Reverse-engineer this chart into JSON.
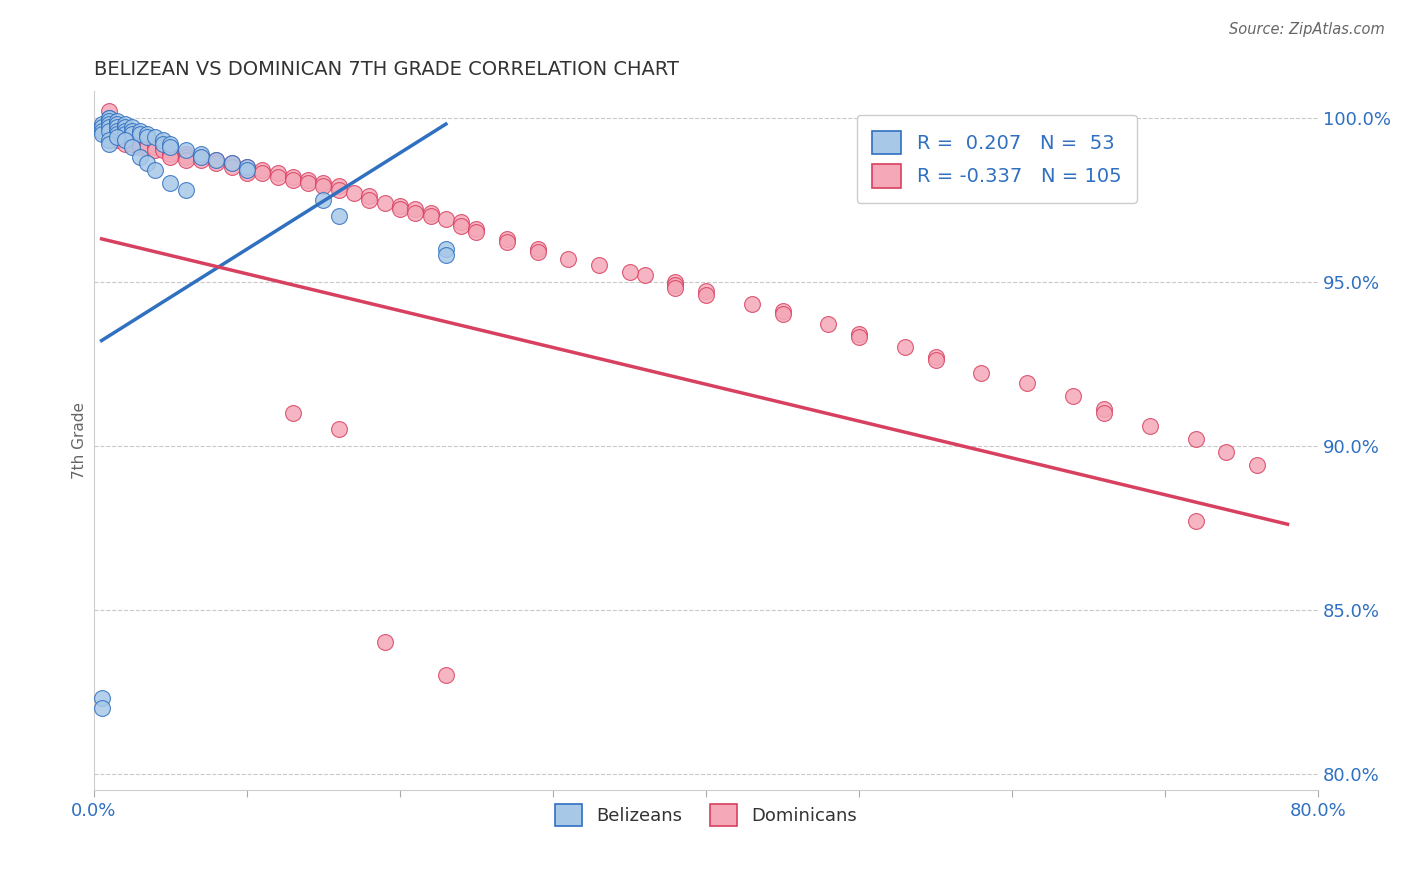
{
  "title": "BELIZEAN VS DOMINICAN 7TH GRADE CORRELATION CHART",
  "source": "Source: ZipAtlas.com",
  "ylabel": "7th Grade",
  "xlim": [
    0.0,
    0.8
  ],
  "ylim": [
    0.795,
    1.008
  ],
  "yticks": [
    0.8,
    0.85,
    0.9,
    0.95,
    1.0
  ],
  "ytick_labels": [
    "80.0%",
    "85.0%",
    "90.0%",
    "95.0%",
    "100.0%"
  ],
  "xticks": [
    0.0,
    0.1,
    0.2,
    0.3,
    0.4,
    0.5,
    0.6,
    0.7,
    0.8
  ],
  "xtick_labels": [
    "0.0%",
    "",
    "",
    "",
    "",
    "",
    "",
    "",
    "80.0%"
  ],
  "blue_R": 0.207,
  "blue_N": 53,
  "pink_R": -0.337,
  "pink_N": 105,
  "blue_color": "#a8c8e8",
  "pink_color": "#f4a8b8",
  "blue_line_color": "#3070c0",
  "pink_line_color": "#d84060",
  "blue_line_x0": 0.005,
  "blue_line_x1": 0.23,
  "blue_line_y0": 0.932,
  "blue_line_y1": 0.998,
  "pink_line_x0": 0.005,
  "pink_line_x1": 0.78,
  "pink_line_y0": 0.963,
  "pink_line_y1": 0.876,
  "blue_x": [
    0.005,
    0.005,
    0.005,
    0.005,
    0.01,
    0.01,
    0.01,
    0.01,
    0.01,
    0.01,
    0.015,
    0.015,
    0.015,
    0.015,
    0.015,
    0.02,
    0.02,
    0.02,
    0.02,
    0.025,
    0.025,
    0.025,
    0.03,
    0.03,
    0.035,
    0.035,
    0.04,
    0.045,
    0.045,
    0.05,
    0.05,
    0.06,
    0.07,
    0.07,
    0.08,
    0.09,
    0.1,
    0.1,
    0.15,
    0.16,
    0.23,
    0.23,
    0.01,
    0.01,
    0.015,
    0.02,
    0.025,
    0.03,
    0.035,
    0.04,
    0.05,
    0.06,
    0.005,
    0.005
  ],
  "blue_y": [
    0.998,
    0.997,
    0.996,
    0.995,
    1.0,
    1.0,
    0.999,
    0.998,
    0.997,
    0.996,
    0.999,
    0.998,
    0.997,
    0.996,
    0.995,
    0.998,
    0.997,
    0.996,
    0.995,
    0.997,
    0.996,
    0.995,
    0.996,
    0.995,
    0.995,
    0.994,
    0.994,
    0.993,
    0.992,
    0.992,
    0.991,
    0.99,
    0.989,
    0.988,
    0.987,
    0.986,
    0.985,
    0.984,
    0.975,
    0.97,
    0.96,
    0.958,
    0.993,
    0.992,
    0.994,
    0.993,
    0.991,
    0.988,
    0.986,
    0.984,
    0.98,
    0.978,
    0.823,
    0.82
  ],
  "pink_x": [
    0.01,
    0.01,
    0.01,
    0.01,
    0.01,
    0.015,
    0.015,
    0.015,
    0.015,
    0.02,
    0.02,
    0.02,
    0.02,
    0.025,
    0.025,
    0.025,
    0.03,
    0.03,
    0.03,
    0.035,
    0.035,
    0.04,
    0.04,
    0.04,
    0.045,
    0.045,
    0.05,
    0.05,
    0.05,
    0.06,
    0.06,
    0.06,
    0.07,
    0.07,
    0.08,
    0.08,
    0.09,
    0.09,
    0.1,
    0.1,
    0.1,
    0.11,
    0.11,
    0.12,
    0.12,
    0.13,
    0.13,
    0.14,
    0.14,
    0.15,
    0.15,
    0.16,
    0.16,
    0.17,
    0.18,
    0.18,
    0.19,
    0.2,
    0.2,
    0.21,
    0.21,
    0.22,
    0.22,
    0.23,
    0.24,
    0.24,
    0.25,
    0.25,
    0.27,
    0.27,
    0.29,
    0.29,
    0.31,
    0.33,
    0.36,
    0.38,
    0.38,
    0.4,
    0.4,
    0.43,
    0.45,
    0.45,
    0.48,
    0.5,
    0.5,
    0.53,
    0.55,
    0.55,
    0.58,
    0.61,
    0.64,
    0.66,
    0.66,
    0.69,
    0.72,
    0.74,
    0.76,
    0.01,
    0.19,
    0.23,
    0.72,
    0.13,
    0.16,
    0.35,
    0.38
  ],
  "pink_y": [
    0.997,
    0.996,
    0.995,
    0.994,
    0.993,
    0.996,
    0.995,
    0.994,
    0.993,
    0.995,
    0.994,
    0.993,
    0.992,
    0.994,
    0.993,
    0.992,
    0.993,
    0.992,
    0.991,
    0.992,
    0.991,
    0.992,
    0.991,
    0.99,
    0.991,
    0.99,
    0.99,
    0.989,
    0.988,
    0.989,
    0.988,
    0.987,
    0.988,
    0.987,
    0.987,
    0.986,
    0.986,
    0.985,
    0.985,
    0.984,
    0.983,
    0.984,
    0.983,
    0.983,
    0.982,
    0.982,
    0.981,
    0.981,
    0.98,
    0.98,
    0.979,
    0.979,
    0.978,
    0.977,
    0.976,
    0.975,
    0.974,
    0.973,
    0.972,
    0.972,
    0.971,
    0.971,
    0.97,
    0.969,
    0.968,
    0.967,
    0.966,
    0.965,
    0.963,
    0.962,
    0.96,
    0.959,
    0.957,
    0.955,
    0.952,
    0.95,
    0.949,
    0.947,
    0.946,
    0.943,
    0.941,
    0.94,
    0.937,
    0.934,
    0.933,
    0.93,
    0.927,
    0.926,
    0.922,
    0.919,
    0.915,
    0.911,
    0.91,
    0.906,
    0.902,
    0.898,
    0.894,
    1.002,
    0.84,
    0.83,
    0.877,
    0.91,
    0.905,
    0.953,
    0.948
  ]
}
